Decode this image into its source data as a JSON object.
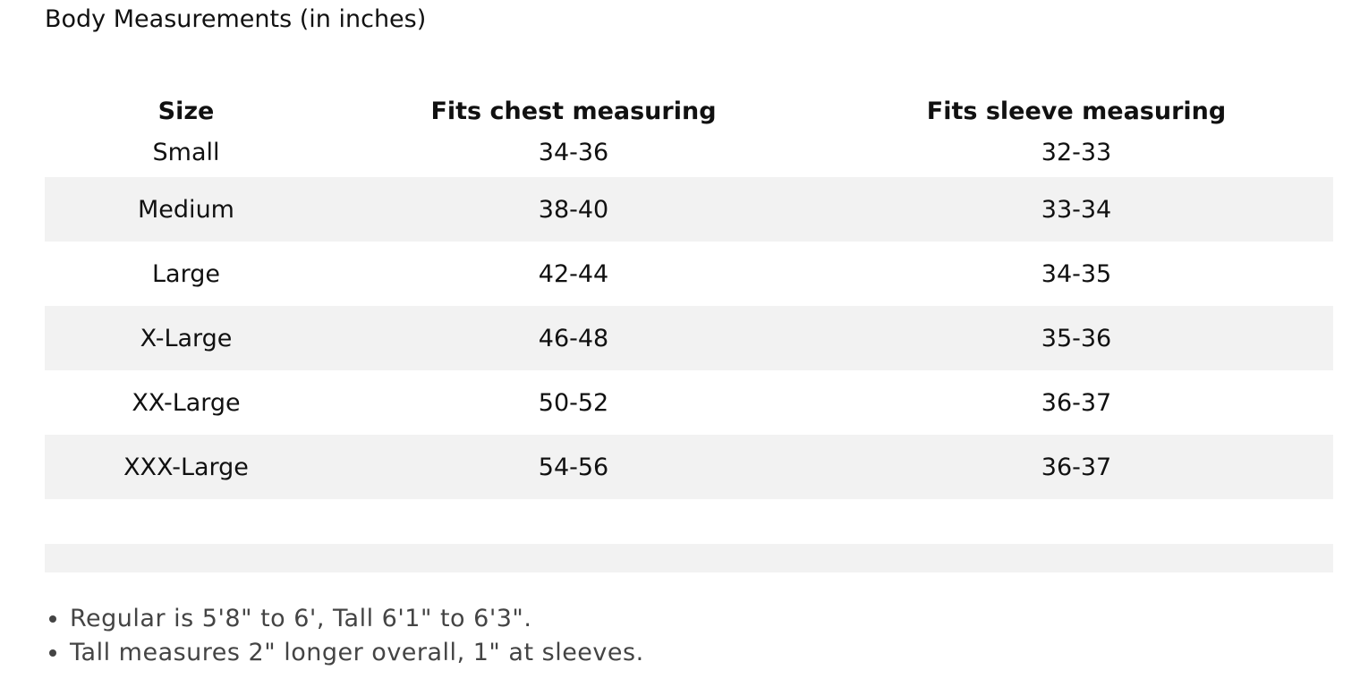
{
  "title": "Body Measurements (in inches)",
  "table": {
    "header": [
      "Size",
      "Fits chest measuring",
      "Fits sleeve measuring"
    ],
    "rows": [
      [
        "Small",
        "34-36",
        "32-33"
      ],
      [
        "Medium",
        "38-40",
        "33-34"
      ],
      [
        "Large",
        "42-44",
        "34-35"
      ],
      [
        "X-Large",
        "46-48",
        "35-36"
      ],
      [
        "XX-Large",
        "50-52",
        "36-37"
      ],
      [
        "XXX-Large",
        "54-56",
        "36-37"
      ]
    ]
  },
  "notes": [
    "Regular is 5'8\" to 6', Tall 6'1\" to 6'3\".",
    "Tall measures 2\" longer overall, 1\" at sleeves."
  ]
}
